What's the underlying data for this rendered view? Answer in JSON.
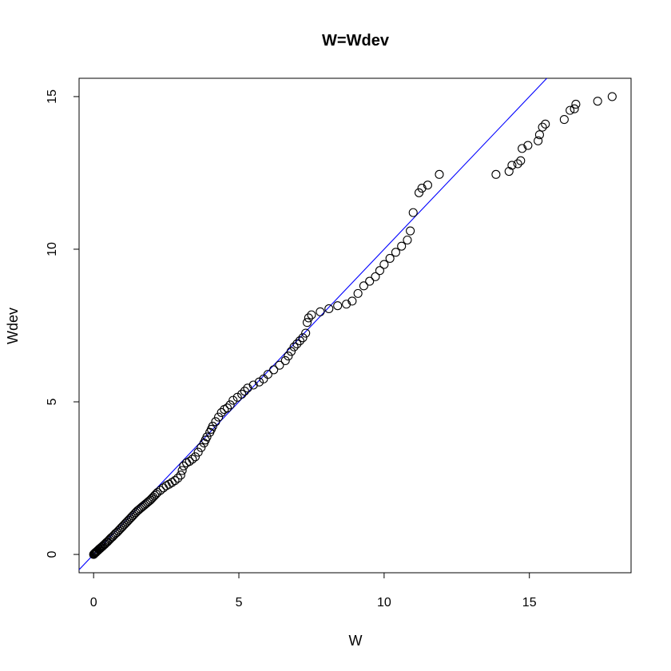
{
  "chart_data": {
    "type": "scatter",
    "title": "W=Wdev",
    "xlabel": "W",
    "ylabel": "Wdev",
    "xlim": [
      -0.5,
      18.5
    ],
    "ylim": [
      -0.6,
      15.6
    ],
    "x_ticks": [
      0,
      5,
      10,
      15
    ],
    "y_ticks": [
      0,
      5,
      10,
      15
    ],
    "x_tick_labels": [
      "0",
      "5",
      "10",
      "15"
    ],
    "y_tick_labels": [
      "0",
      "5",
      "10",
      "15"
    ],
    "grid": false,
    "reference_line": {
      "intercept": 0,
      "slope": 1,
      "color": "#0000ff"
    },
    "points": [
      [
        0.0,
        0.0
      ],
      [
        0.02,
        0.02
      ],
      [
        0.04,
        0.04
      ],
      [
        0.06,
        0.06
      ],
      [
        0.08,
        0.07
      ],
      [
        0.1,
        0.09
      ],
      [
        0.12,
        0.11
      ],
      [
        0.15,
        0.13
      ],
      [
        0.18,
        0.16
      ],
      [
        0.2,
        0.18
      ],
      [
        0.23,
        0.2
      ],
      [
        0.26,
        0.23
      ],
      [
        0.3,
        0.26
      ],
      [
        0.33,
        0.29
      ],
      [
        0.37,
        0.32
      ],
      [
        0.4,
        0.35
      ],
      [
        0.44,
        0.39
      ],
      [
        0.48,
        0.42
      ],
      [
        0.52,
        0.46
      ],
      [
        0.56,
        0.5
      ],
      [
        0.6,
        0.54
      ],
      [
        0.65,
        0.58
      ],
      [
        0.7,
        0.63
      ],
      [
        0.75,
        0.68
      ],
      [
        0.8,
        0.72
      ],
      [
        0.85,
        0.77
      ],
      [
        0.9,
        0.82
      ],
      [
        0.95,
        0.87
      ],
      [
        1.0,
        0.92
      ],
      [
        1.05,
        0.97
      ],
      [
        1.1,
        1.02
      ],
      [
        1.15,
        1.07
      ],
      [
        1.2,
        1.12
      ],
      [
        1.25,
        1.17
      ],
      [
        1.3,
        1.22
      ],
      [
        1.35,
        1.27
      ],
      [
        1.4,
        1.32
      ],
      [
        1.45,
        1.37
      ],
      [
        1.5,
        1.42
      ],
      [
        1.55,
        1.46
      ],
      [
        1.6,
        1.5
      ],
      [
        1.65,
        1.54
      ],
      [
        1.7,
        1.58
      ],
      [
        1.75,
        1.62
      ],
      [
        1.8,
        1.66
      ],
      [
        1.85,
        1.7
      ],
      [
        1.9,
        1.74
      ],
      [
        1.95,
        1.78
      ],
      [
        2.0,
        1.83
      ],
      [
        2.05,
        1.88
      ],
      [
        2.1,
        1.93
      ],
      [
        2.15,
        1.98
      ],
      [
        2.2,
        2.03
      ],
      [
        2.3,
        2.1
      ],
      [
        2.4,
        2.18
      ],
      [
        2.5,
        2.25
      ],
      [
        2.6,
        2.3
      ],
      [
        2.7,
        2.36
      ],
      [
        2.8,
        2.42
      ],
      [
        2.9,
        2.5
      ],
      [
        3.0,
        2.6
      ],
      [
        3.05,
        2.75
      ],
      [
        3.1,
        2.9
      ],
      [
        3.2,
        3.0
      ],
      [
        3.3,
        3.05
      ],
      [
        3.4,
        3.12
      ],
      [
        3.5,
        3.2
      ],
      [
        3.6,
        3.35
      ],
      [
        3.7,
        3.5
      ],
      [
        3.8,
        3.65
      ],
      [
        3.85,
        3.75
      ],
      [
        3.9,
        3.85
      ],
      [
        4.0,
        4.0
      ],
      [
        4.05,
        4.1
      ],
      [
        4.1,
        4.2
      ],
      [
        4.2,
        4.35
      ],
      [
        4.3,
        4.5
      ],
      [
        4.4,
        4.65
      ],
      [
        4.5,
        4.75
      ],
      [
        4.6,
        4.8
      ],
      [
        4.7,
        4.9
      ],
      [
        4.8,
        5.05
      ],
      [
        4.95,
        5.15
      ],
      [
        5.1,
        5.25
      ],
      [
        5.2,
        5.35
      ],
      [
        5.3,
        5.45
      ],
      [
        5.5,
        5.55
      ],
      [
        5.7,
        5.65
      ],
      [
        5.85,
        5.75
      ],
      [
        6.0,
        5.9
      ],
      [
        6.2,
        6.05
      ],
      [
        6.4,
        6.2
      ],
      [
        6.6,
        6.35
      ],
      [
        6.7,
        6.5
      ],
      [
        6.8,
        6.65
      ],
      [
        6.9,
        6.8
      ],
      [
        7.0,
        6.9
      ],
      [
        7.1,
        7.0
      ],
      [
        7.2,
        7.1
      ],
      [
        7.3,
        7.25
      ],
      [
        7.35,
        7.6
      ],
      [
        7.4,
        7.75
      ],
      [
        7.5,
        7.85
      ],
      [
        7.8,
        7.95
      ],
      [
        8.1,
        8.05
      ],
      [
        8.4,
        8.15
      ],
      [
        8.7,
        8.2
      ],
      [
        8.9,
        8.3
      ],
      [
        9.1,
        8.55
      ],
      [
        9.3,
        8.8
      ],
      [
        9.5,
        8.95
      ],
      [
        9.7,
        9.1
      ],
      [
        9.85,
        9.3
      ],
      [
        10.0,
        9.5
      ],
      [
        10.2,
        9.7
      ],
      [
        10.4,
        9.9
      ],
      [
        10.6,
        10.1
      ],
      [
        10.8,
        10.3
      ],
      [
        10.9,
        10.6
      ],
      [
        11.0,
        11.2
      ],
      [
        11.2,
        11.85
      ],
      [
        11.3,
        12.0
      ],
      [
        11.5,
        12.1
      ],
      [
        11.9,
        12.45
      ],
      [
        13.85,
        12.45
      ],
      [
        14.3,
        12.55
      ],
      [
        14.4,
        12.75
      ],
      [
        14.6,
        12.8
      ],
      [
        14.7,
        12.9
      ],
      [
        14.75,
        13.3
      ],
      [
        14.95,
        13.4
      ],
      [
        15.3,
        13.55
      ],
      [
        15.35,
        13.75
      ],
      [
        15.45,
        14.0
      ],
      [
        15.55,
        14.1
      ],
      [
        16.2,
        14.25
      ],
      [
        16.4,
        14.55
      ],
      [
        16.55,
        14.6
      ],
      [
        16.6,
        14.75
      ],
      [
        17.35,
        14.85
      ],
      [
        17.85,
        15.0
      ]
    ]
  }
}
